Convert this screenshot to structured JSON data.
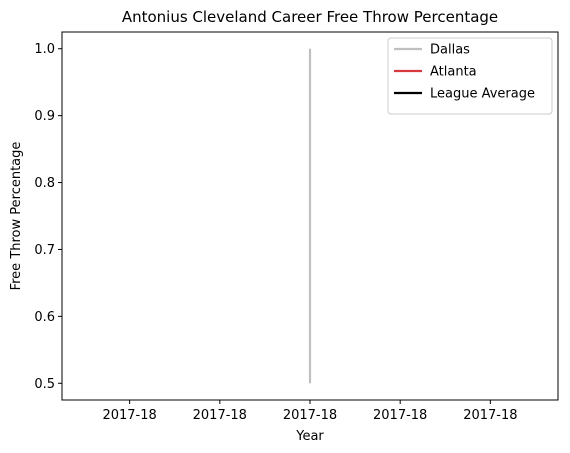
{
  "chart_data": {
    "type": "line",
    "title": "Antonius Cleveland Career Free Throw Percentage",
    "xlabel": "Year",
    "ylabel": "Free Throw Percentage",
    "x_tick_labels": [
      "2017-18",
      "2017-18",
      "2017-18",
      "2017-18",
      "2017-18"
    ],
    "y_tick_labels": [
      "0.5",
      "0.6",
      "0.7",
      "0.8",
      "0.9",
      "1.0"
    ],
    "y_ticks": [
      0.5,
      0.6,
      0.7,
      0.8,
      0.9,
      1.0
    ],
    "ylim": [
      0.475,
      1.025
    ],
    "x_ticks": [
      -0.04,
      -0.02,
      0.0,
      0.02,
      0.04
    ],
    "xlim": [
      -0.055,
      0.055
    ],
    "grid": false,
    "legend_position": "top-right",
    "series": [
      {
        "name": "Dallas",
        "color": "#c0c0c0",
        "points": [
          {
            "x": 0,
            "y": 0.5
          },
          {
            "x": 0,
            "y": 1.0
          }
        ]
      },
      {
        "name": "Atlanta",
        "color": "#d63a3f",
        "points": []
      },
      {
        "name": "League Average",
        "color": "#000000",
        "points": []
      }
    ]
  }
}
